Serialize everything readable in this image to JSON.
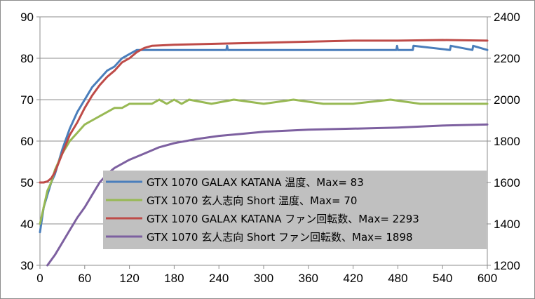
{
  "chart_data": {
    "type": "line",
    "title": "",
    "xlabel": "",
    "ylabel_left": "",
    "ylabel_right": "",
    "x_ticks": [
      0,
      60,
      120,
      180,
      240,
      300,
      360,
      420,
      480,
      540,
      600
    ],
    "y_left_ticks": [
      30,
      40,
      50,
      60,
      70,
      80,
      90
    ],
    "y_right_ticks": [
      1200,
      1400,
      1600,
      1800,
      2000,
      2200,
      2400
    ],
    "xlim": [
      0,
      600
    ],
    "ylim_left": [
      30,
      90
    ],
    "ylim_right": [
      1200,
      2400
    ],
    "grid": "horizontal",
    "legend_position": "center-left",
    "legend_background": "#c0c0c0",
    "series": [
      {
        "name": "GTX 1070 GALAX KATANA 温度、Max= 83",
        "axis": "left",
        "color": "#4a7ebb",
        "x": [
          0,
          5,
          10,
          15,
          20,
          30,
          40,
          50,
          60,
          70,
          80,
          90,
          100,
          110,
          120,
          130,
          135,
          150,
          200,
          250,
          251,
          252,
          300,
          400,
          478,
          479,
          480,
          500,
          501,
          550,
          551,
          580,
          581,
          600
        ],
        "y": [
          38,
          44,
          47,
          50,
          52,
          58,
          63,
          67,
          70,
          73,
          75,
          77,
          78,
          80,
          81,
          82,
          82,
          82,
          82,
          82,
          83,
          82,
          82,
          82,
          82,
          83,
          82,
          82,
          83,
          82,
          83,
          82,
          83,
          82
        ]
      },
      {
        "name": "GTX 1070 玄人志向 Short 温度、Max= 70",
        "axis": "left",
        "color": "#98b954",
        "x": [
          0,
          5,
          10,
          15,
          20,
          30,
          40,
          50,
          60,
          70,
          80,
          90,
          100,
          110,
          120,
          130,
          140,
          150,
          160,
          170,
          180,
          190,
          200,
          230,
          260,
          300,
          340,
          380,
          420,
          470,
          510,
          540,
          580,
          600
        ],
        "y": [
          40,
          44,
          48,
          50,
          53,
          57,
          60,
          62,
          64,
          65,
          66,
          67,
          68,
          68,
          69,
          69,
          69,
          69,
          70,
          69,
          70,
          69,
          70,
          69,
          70,
          69,
          70,
          69,
          69,
          70,
          69,
          69,
          69,
          69
        ]
      },
      {
        "name": "GTX 1070 GALAX KATANA ファン回転数、Max= 2293",
        "axis": "right",
        "color": "#be4b48",
        "x": [
          0,
          5,
          10,
          15,
          20,
          30,
          40,
          50,
          60,
          70,
          80,
          90,
          100,
          110,
          120,
          130,
          140,
          150,
          180,
          240,
          300,
          360,
          420,
          480,
          540,
          600
        ],
        "y": [
          1600,
          1600,
          1605,
          1620,
          1650,
          1740,
          1830,
          1890,
          1960,
          2020,
          2070,
          2110,
          2140,
          2180,
          2200,
          2230,
          2250,
          2260,
          2265,
          2270,
          2275,
          2280,
          2285,
          2285,
          2288,
          2285
        ]
      },
      {
        "name": "GTX 1070 玄人志向 Short ファン回転数、Max= 1898",
        "axis": "right",
        "color": "#7d60a0",
        "x": [
          10,
          20,
          30,
          40,
          50,
          60,
          70,
          80,
          90,
          100,
          120,
          140,
          160,
          180,
          210,
          240,
          270,
          300,
          360,
          420,
          480,
          540,
          600
        ],
        "y": [
          1200,
          1250,
          1310,
          1370,
          1430,
          1480,
          1540,
          1600,
          1640,
          1670,
          1710,
          1740,
          1770,
          1790,
          1810,
          1825,
          1835,
          1845,
          1855,
          1860,
          1865,
          1875,
          1880
        ]
      }
    ]
  },
  "legend": {
    "items": [
      {
        "label": "GTX 1070 GALAX KATANA 温度、Max= 83",
        "color": "#4a7ebb"
      },
      {
        "label": "GTX 1070 玄人志向 Short 温度、Max= 70",
        "color": "#98b954"
      },
      {
        "label": "GTX 1070 GALAX KATANA ファン回転数、Max= 2293",
        "color": "#be4b48"
      },
      {
        "label": "GTX 1070 玄人志向 Short ファン回転数、Max= 1898",
        "color": "#7d60a0"
      }
    ]
  }
}
